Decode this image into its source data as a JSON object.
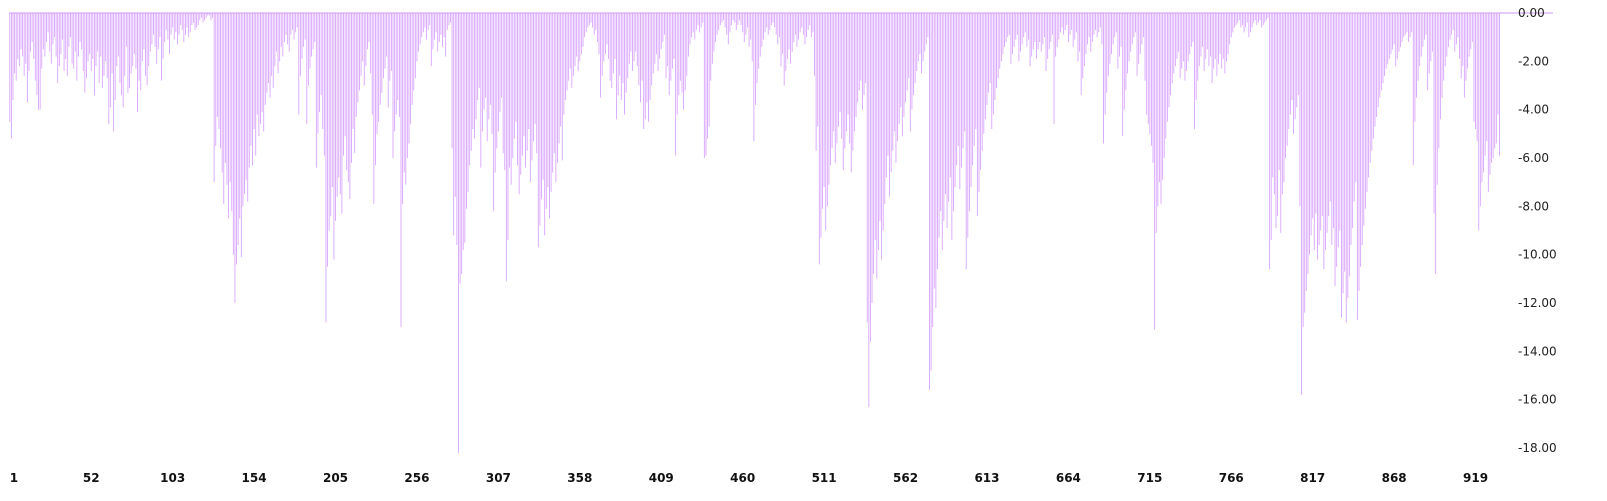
{
  "colors": {
    "bar": "#d9a6ff",
    "baseline": "#cf9af5",
    "text": "#222222"
  },
  "chart_data": {
    "type": "bar",
    "title": "",
    "xlabel": "",
    "ylabel": "",
    "ylim": [
      -18,
      0
    ],
    "y_ticks": [
      0,
      -2,
      -4,
      -6,
      -8,
      -10,
      -12,
      -14,
      -16,
      -18
    ],
    "y_tick_labels": [
      "0.00",
      "-2.00",
      "-4.00",
      "-6.00",
      "-8.00",
      "-10.00",
      "-12.00",
      "-14.00",
      "-16.00",
      "-18.00"
    ],
    "x_range": [
      1,
      967
    ],
    "x_ticks": [
      1,
      52,
      103,
      154,
      205,
      256,
      307,
      358,
      409,
      460,
      511,
      562,
      613,
      664,
      715,
      766,
      817,
      868,
      919
    ],
    "x_tick_labels": [
      "1",
      "52",
      "103",
      "154",
      "205",
      "256",
      "307",
      "358",
      "409",
      "460",
      "511",
      "562",
      "613",
      "664",
      "715",
      "766",
      "817",
      "868",
      "919"
    ],
    "grid": false,
    "legend": "none",
    "values": [
      -4.5,
      -5.2,
      -3.6,
      -2.5,
      -2.8,
      -1.9,
      -2.2,
      -1.5,
      -1.8,
      -2.6,
      -2.1,
      -3.7,
      -2.4,
      -1.6,
      -1.2,
      -1.9,
      -2.8,
      -3.4,
      -4.0,
      -4.0,
      -2.3,
      -1.5,
      -1.8,
      -1.2,
      -0.8,
      -1.6,
      -2.1,
      -1.3,
      -1.0,
      -1.8,
      -2.9,
      -2.2,
      -1.7,
      -1.1,
      -2.4,
      -1.9,
      -2.6,
      -1.4,
      -1.0,
      -2.1,
      -2.3,
      -1.6,
      -2.8,
      -1.8,
      -1.2,
      -1.5,
      -2.4,
      -3.3,
      -2.7,
      -2.0,
      -1.7,
      -2.4,
      -1.9,
      -3.4,
      -2.2,
      -1.6,
      -2.9,
      -1.8,
      -3.1,
      -2.6,
      -2.0,
      -2.7,
      -4.6,
      -3.9,
      -2.5,
      -4.9,
      -3.6,
      -2.2,
      -1.8,
      -2.9,
      -3.4,
      -3.9,
      -2.6,
      -1.4,
      -3.3,
      -3.1,
      -2.5,
      -2.2,
      -1.7,
      -2.3,
      -4.1,
      -2.8,
      -3.2,
      -2.0,
      -1.5,
      -2.6,
      -3.0,
      -2.2,
      -1.6,
      -1.3,
      -0.9,
      -1.4,
      -2.1,
      -1.5,
      -1.0,
      -2.8,
      -1.9,
      -1.2,
      -0.7,
      -1.1,
      -1.7,
      -0.9,
      -0.6,
      -1.1,
      -0.8,
      -1.3,
      -0.9,
      -0.5,
      -0.7,
      -1.2,
      -0.9,
      -0.6,
      -1.0,
      -0.8,
      -0.5,
      -0.4,
      -0.7,
      -0.6,
      -0.5,
      -0.3,
      -0.2,
      -0.4,
      -0.3,
      -0.2,
      -0.1,
      -0.1,
      -0.3,
      -0.2,
      -7.0,
      -5.5,
      -4.3,
      -4.8,
      -5.6,
      -6.6,
      -7.9,
      -6.2,
      -7.1,
      -8.5,
      -7.0,
      -8.2,
      -10.0,
      -12.0,
      -10.4,
      -9.6,
      -8.5,
      -10.1,
      -8.0,
      -7.5,
      -6.9,
      -7.8,
      -6.4,
      -5.5,
      -6.3,
      -4.8,
      -5.9,
      -4.2,
      -5.1,
      -4.6,
      -4.1,
      -4.9,
      -3.8,
      -3.3,
      -2.9,
      -3.5,
      -2.6,
      -3.1,
      -2.2,
      -1.6,
      -2.5,
      -2.0,
      -1.4,
      -1.8,
      -1.2,
      -0.9,
      -1.3,
      -1.6,
      -0.9,
      -0.7,
      -1.1,
      -0.8,
      -0.6,
      -4.2,
      -2.6,
      -1.9,
      -1.4,
      -1.1,
      -4.6,
      -3.0,
      -2.3,
      -1.8,
      -1.5,
      -1.2,
      -6.4,
      -5.0,
      -4.1,
      -3.4,
      -4.8,
      -5.9,
      -12.8,
      -10.5,
      -9.0,
      -8.4,
      -7.2,
      -10.2,
      -8.6,
      -7.6,
      -6.8,
      -7.5,
      -8.3,
      -5.9,
      -5.1,
      -6.5,
      -7.0,
      -7.7,
      -6.2,
      -4.8,
      -5.8,
      -4.3,
      -3.7,
      -3.2,
      -2.6,
      -2.0,
      -3.0,
      -2.2,
      -1.5,
      -1.2,
      -2.5,
      -4.2,
      -7.9,
      -6.3,
      -5.0,
      -4.5,
      -3.8,
      -3.3,
      -2.7,
      -2.3,
      -1.8,
      -3.9,
      -2.8,
      -2.4,
      -6.0,
      -4.9,
      -4.2,
      -3.6,
      -4.3,
      -13.0,
      -7.9,
      -6.6,
      -7.1,
      -6.0,
      -5.4,
      -4.6,
      -3.8,
      -3.2,
      -2.7,
      -2.0,
      -1.6,
      -1.3,
      -1.0,
      -0.8,
      -0.6,
      -1.1,
      -0.7,
      -0.5,
      -2.2,
      -1.5,
      -1.1,
      -0.8,
      -1.6,
      -1.2,
      -0.9,
      -1.4,
      -1.0,
      -1.8,
      -0.7,
      -0.5,
      -0.4,
      -5.6,
      -9.2,
      -7.6,
      -9.6,
      -18.2,
      -11.2,
      -10.8,
      -9.8,
      -9.5,
      -8.1,
      -7.4,
      -6.3,
      -5.7,
      -4.8,
      -5.2,
      -4.4,
      -3.6,
      -3.1,
      -6.4,
      -4.9,
      -4.0,
      -3.5,
      -5.3,
      -4.4,
      -3.8,
      -5.0,
      -8.2,
      -6.6,
      -5.6,
      -4.9,
      -4.1,
      -3.5,
      -5.8,
      -6.5,
      -11.1,
      -9.4,
      -6.4,
      -7.1,
      -6.0,
      -5.2,
      -4.5,
      -6.3,
      -7.5,
      -6.7,
      -5.9,
      -5.1,
      -6.4,
      -5.7,
      -4.8,
      -7.0,
      -6.1,
      -5.3,
      -4.6,
      -5.8,
      -9.7,
      -8.8,
      -7.7,
      -6.9,
      -9.2,
      -8.1,
      -7.2,
      -8.5,
      -7.4,
      -6.6,
      -5.8,
      -7.0,
      -6.2,
      -5.4,
      -4.7,
      -6.1,
      -4.2,
      -3.6,
      -3.2,
      -2.8,
      -2.3,
      -3.1,
      -2.6,
      -2.2,
      -1.8,
      -2.4,
      -2.0,
      -1.7,
      -1.4,
      -1.0,
      -0.8,
      -0.6,
      -0.5,
      -0.4,
      -0.6,
      -0.9,
      -0.7,
      -1.2,
      -1.7,
      -3.5,
      -2.6,
      -2.0,
      -1.7,
      -1.3,
      -1.9,
      -2.8,
      -3.1,
      -2.5,
      -1.9,
      -4.4,
      -3.4,
      -2.6,
      -3.6,
      -2.9,
      -4.2,
      -3.3,
      -2.7,
      -2.1,
      -1.6,
      -2.4,
      -2.0,
      -1.6,
      -2.2,
      -3.0,
      -3.7,
      -2.8,
      -4.8,
      -4.4,
      -3.7,
      -4.5,
      -3.6,
      -3.0,
      -2.5,
      -2.1,
      -1.7,
      -2.4,
      -1.9,
      -1.5,
      -1.2,
      -0.9,
      -2.7,
      -2.2,
      -3.4,
      -2.8,
      -2.3,
      -1.9,
      -5.9,
      -4.2,
      -3.4,
      -2.8,
      -3.3,
      -4.0,
      -3.2,
      -2.6,
      -1.8,
      -1.3,
      -1.0,
      -0.8,
      -1.1,
      -0.7,
      -0.5,
      -0.8,
      -0.6,
      -0.4,
      -6.0,
      -5.9,
      -5.2,
      -4.7,
      -2.8,
      -2.1,
      -1.6,
      -1.2,
      -0.9,
      -0.7,
      -0.5,
      -0.4,
      -0.3,
      -0.6,
      -0.9,
      -1.3,
      -0.8,
      -0.5,
      -0.3,
      -0.4,
      -0.7,
      -0.5,
      -0.3,
      -0.5,
      -0.8,
      -1.2,
      -0.9,
      -0.6,
      -1.4,
      -1.1,
      -2.0,
      -5.3,
      -3.8,
      -2.9,
      -2.3,
      -1.8,
      -1.4,
      -1.1,
      -0.8,
      -0.6,
      -0.9,
      -0.7,
      -0.5,
      -0.4,
      -0.6,
      -0.9,
      -1.3,
      -1.0,
      -2.2,
      -1.7,
      -3.0,
      -2.4,
      -1.9,
      -1.5,
      -2.1,
      -1.6,
      -1.2,
      -0.9,
      -1.4,
      -1.1,
      -0.8,
      -0.6,
      -0.9,
      -1.3,
      -1.0,
      -0.7,
      -0.5,
      -1.0,
      -0.8,
      -2.6,
      -5.7,
      -4.7,
      -10.4,
      -9.3,
      -8.1,
      -7.2,
      -9.0,
      -8.0,
      -7.1,
      -6.3,
      -5.6,
      -4.9,
      -6.2,
      -5.4,
      -4.7,
      -4.1,
      -5.2,
      -6.5,
      -5.6,
      -4.9,
      -4.2,
      -5.4,
      -6.6,
      -5.7,
      -4.9,
      -4.3,
      -3.7,
      -3.2,
      -2.8,
      -4.0,
      -3.4,
      -2.9,
      -12.8,
      -16.3,
      -13.6,
      -12.0,
      -10.8,
      -9.4,
      -11.0,
      -9.8,
      -8.6,
      -10.2,
      -9.0,
      -7.9,
      -6.8,
      -5.9,
      -7.6,
      -6.6,
      -5.7,
      -4.9,
      -6.2,
      -5.3,
      -4.6,
      -3.9,
      -5.1,
      -4.3,
      -3.7,
      -3.2,
      -2.7,
      -4.9,
      -4.0,
      -3.4,
      -2.9,
      -2.4,
      -2.0,
      -1.7,
      -2.5,
      -2.0,
      -1.6,
      -1.3,
      -1.0,
      -15.6,
      -14.8,
      -13.0,
      -11.4,
      -12.2,
      -10.6,
      -9.3,
      -8.2,
      -9.8,
      -8.6,
      -7.5,
      -8.9,
      -7.8,
      -6.8,
      -9.4,
      -8.2,
      -7.2,
      -6.3,
      -5.5,
      -7.3,
      -6.4,
      -5.6,
      -4.9,
      -10.6,
      -9.3,
      -8.2,
      -7.2,
      -6.3,
      -5.5,
      -4.8,
      -8.4,
      -7.4,
      -6.5,
      -5.7,
      -5.0,
      -4.4,
      -3.8,
      -3.3,
      -2.9,
      -4.8,
      -4.2,
      -3.6,
      -3.1,
      -2.7,
      -2.3,
      -2.0,
      -1.7,
      -1.4,
      -1.2,
      -1.0,
      -0.9,
      -2.1,
      -1.7,
      -1.4,
      -1.1,
      -0.9,
      -2.0,
      -1.6,
      -1.3,
      -1.0,
      -0.8,
      -1.4,
      -1.1,
      -2.2,
      -1.8,
      -1.5,
      -1.2,
      -1.9,
      -1.5,
      -1.2,
      -1.6,
      -1.3,
      -1.0,
      -2.4,
      -1.9,
      -1.5,
      -1.2,
      -0.9,
      -4.6,
      -1.8,
      -1.4,
      -1.1,
      -0.8,
      -0.6,
      -0.9,
      -0.7,
      -0.5,
      -1.2,
      -0.9,
      -0.7,
      -1.4,
      -1.1,
      -0.8,
      -2.0,
      -1.6,
      -3.4,
      -2.7,
      -2.2,
      -1.7,
      -1.3,
      -1.0,
      -1.6,
      -1.2,
      -0.9,
      -0.7,
      -1.0,
      -0.8,
      -0.6,
      -1.3,
      -5.4,
      -4.2,
      -3.3,
      -2.6,
      -2.1,
      -1.7,
      -1.3,
      -1.0,
      -0.8,
      -2.3,
      -1.8,
      -1.4,
      -5.1,
      -4.0,
      -3.2,
      -2.5,
      -2.0,
      -1.6,
      -1.3,
      -1.0,
      -0.8,
      -2.6,
      -2.1,
      -1.7,
      -1.3,
      -1.0,
      -2.8,
      -4.2,
      -4.6,
      -5.0,
      -5.5,
      -6.2,
      -13.1,
      -9.1,
      -8.0,
      -7.0,
      -7.9,
      -6.9,
      -6.0,
      -5.2,
      -4.5,
      -3.9,
      -3.4,
      -2.9,
      -2.5,
      -2.2,
      -1.9,
      -1.6,
      -2.7,
      -2.3,
      -2.0,
      -2.8,
      -2.4,
      -2.0,
      -1.7,
      -1.4,
      -1.2,
      -4.8,
      -3.6,
      -2.8,
      -2.2,
      -1.8,
      -1.4,
      -2.4,
      -1.9,
      -1.5,
      -2.2,
      -1.8,
      -2.9,
      -2.3,
      -1.9,
      -2.6,
      -2.1,
      -1.7,
      -2.3,
      -1.9,
      -2.5,
      -2.0,
      -1.7,
      -1.3,
      -1.0,
      -0.8,
      -0.6,
      -0.5,
      -0.4,
      -0.3,
      -0.6,
      -0.5,
      -0.8,
      -0.6,
      -0.4,
      -1.0,
      -0.8,
      -0.6,
      -0.4,
      -0.3,
      -0.5,
      -0.4,
      -0.3,
      -0.6,
      -0.5,
      -0.4,
      -0.3,
      -0.2,
      -10.6,
      -9.4,
      -6.8,
      -7.5,
      -8.9,
      -8.4,
      -6.5,
      -9.1,
      -7.5,
      -7.0,
      -6.0,
      -5.5,
      -4.8,
      -4.2,
      -3.6,
      -5.0,
      -4.4,
      -3.9,
      -3.4,
      -8.0,
      -15.8,
      -13.0,
      -12.4,
      -11.5,
      -10.8,
      -10.0,
      -9.2,
      -8.5,
      -9.8,
      -8.3,
      -10.2,
      -9.6,
      -9.0,
      -8.4,
      -10.6,
      -9.8,
      -9.1,
      -8.4,
      -7.8,
      -9.6,
      -8.9,
      -11.3,
      -10.5,
      -9.7,
      -9.0,
      -12.6,
      -11.6,
      -10.7,
      -12.8,
      -11.8,
      -10.9,
      -9.6,
      -8.9,
      -7.8,
      -7.0,
      -12.7,
      -11.5,
      -10.5,
      -9.6,
      -8.8,
      -8.1,
      -7.4,
      -6.8,
      -6.2,
      -5.7,
      -5.2,
      -4.7,
      -4.3,
      -3.9,
      -3.5,
      -3.2,
      -2.9,
      -2.6,
      -2.3,
      -2.1,
      -1.9,
      -1.7,
      -1.5,
      -1.3,
      -2.2,
      -1.9,
      -1.6,
      -1.4,
      -1.2,
      -1.0,
      -0.9,
      -0.8,
      -1.2,
      -1.0,
      -0.8,
      -6.3,
      -4.5,
      -3.5,
      -2.8,
      -2.2,
      -1.8,
      -1.4,
      -1.1,
      -0.9,
      -3.2,
      -2.5,
      -2.0,
      -1.6,
      -8.3,
      -10.8,
      -7.1,
      -5.6,
      -4.4,
      -3.5,
      -2.8,
      -2.2,
      -1.8,
      -1.4,
      -1.1,
      -0.9,
      -0.7,
      -1.6,
      -1.3,
      -1.0,
      -1.9,
      -2.7,
      -2.2,
      -3.5,
      -2.8,
      -2.3,
      -1.8,
      -1.5,
      -1.2,
      -4.5,
      -4.8,
      -5.3,
      -9.0,
      -8.0,
      -7.0,
      -6.6,
      -5.9,
      -5.3,
      -7.4,
      -6.7,
      -6.2,
      -6.0,
      -5.6,
      -5.4,
      -4.2,
      -5.9
    ],
    "value_note": ""
  }
}
